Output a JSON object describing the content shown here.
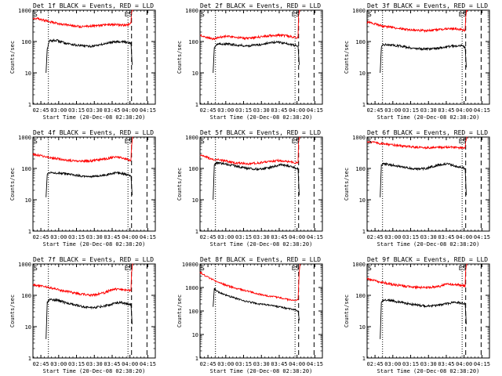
{
  "figure": {
    "date_label": "Start Time (20-Dec-08 02:38:20)",
    "ylabel": "Counts/sec",
    "x_ticks": [
      "02:45",
      "03:00",
      "03:15",
      "03:30",
      "03:45",
      "04:00",
      "04:15"
    ],
    "x_ticks_short": [
      "02:45",
      "03:00",
      "03:15",
      "03:30",
      "03:45",
      "04:00",
      "04:15"
    ],
    "y_ticks_small": [
      "1",
      "10",
      "100",
      "1000"
    ],
    "y_ticks_large": [
      "1",
      "10",
      "100",
      "1000",
      "10000"
    ],
    "colors": {
      "events": "#000000",
      "lld": "#ff0000"
    },
    "marker_glyphs": {
      "left": "S",
      "right": "ES"
    }
  },
  "chart_data": [
    {
      "type": "line",
      "title": "Det 1f BLACK = Events, RED = LLD",
      "xlabel": "Start Time (20-Dec-08 02:38:20)",
      "ylabel": "Counts/sec",
      "x_unit": "minutes after 02:38:20",
      "xlim": [
        0,
        103
      ],
      "ylim": [
        1,
        1000
      ],
      "yscale": "log",
      "series": [
        {
          "name": "Events",
          "color": "#000000",
          "x": [
            11,
            12,
            14,
            20,
            28,
            38,
            48,
            58,
            68,
            76,
            80,
            82.5,
            83.5
          ],
          "y": [
            10,
            60,
            105,
            108,
            88,
            75,
            70,
            80,
            100,
            98,
            95,
            90,
            18
          ]
        },
        {
          "name": "LLD",
          "color": "#ff0000",
          "x": [
            0,
            5,
            10,
            15,
            22,
            30,
            40,
            50,
            60,
            70,
            78,
            82.5,
            83,
            83.8,
            84.3
          ],
          "y": [
            560,
            520,
            470,
            420,
            370,
            330,
            300,
            310,
            340,
            345,
            330,
            390,
            900,
            1000,
            1000
          ]
        }
      ],
      "dotted_lines_x": [
        13,
        80
      ],
      "dashed_lines_x": [
        83,
        96
      ]
    },
    {
      "type": "line",
      "title": "Det 2f BLACK = Events, RED = LLD",
      "xlabel": "Start Time (20-Dec-08 02:38:20)",
      "ylabel": "Counts/sec",
      "x_unit": "minutes after 02:38:20",
      "xlim": [
        0,
        103
      ],
      "ylim": [
        1,
        1000
      ],
      "yscale": "log",
      "series": [
        {
          "name": "Events",
          "color": "#000000",
          "x": [
            11,
            12,
            14,
            20,
            30,
            40,
            50,
            60,
            66,
            74,
            80,
            82.5,
            83.5
          ],
          "y": [
            10,
            65,
            80,
            85,
            78,
            72,
            80,
            92,
            95,
            85,
            75,
            70,
            18
          ]
        },
        {
          "name": "LLD",
          "color": "#ff0000",
          "x": [
            0,
            5,
            10,
            15,
            22,
            30,
            40,
            50,
            60,
            68,
            76,
            82.5,
            83,
            83.8,
            84.3
          ],
          "y": [
            160,
            140,
            120,
            130,
            150,
            135,
            125,
            140,
            155,
            160,
            145,
            130,
            700,
            1000,
            1000
          ]
        }
      ],
      "dotted_lines_x": [
        13,
        80
      ],
      "dashed_lines_x": [
        83,
        96
      ]
    },
    {
      "type": "line",
      "title": "Det 3f BLACK = Events, RED = LLD",
      "xlabel": "Start Time (20-Dec-08 02:38:20)",
      "ylabel": "Counts/sec",
      "x_unit": "minutes after 02:38:20",
      "xlim": [
        0,
        103
      ],
      "ylim": [
        1,
        1000
      ],
      "yscale": "log",
      "series": [
        {
          "name": "Events",
          "color": "#000000",
          "x": [
            11,
            12,
            14,
            20,
            30,
            40,
            50,
            60,
            70,
            78,
            82.5,
            83.5
          ],
          "y": [
            10,
            65,
            80,
            78,
            70,
            60,
            58,
            62,
            70,
            75,
            68,
            15
          ]
        },
        {
          "name": "LLD",
          "color": "#ff0000",
          "x": [
            0,
            5,
            10,
            15,
            22,
            30,
            40,
            50,
            60,
            70,
            78,
            82.5,
            83,
            83.8,
            84.3
          ],
          "y": [
            420,
            380,
            330,
            300,
            280,
            250,
            230,
            220,
            240,
            260,
            240,
            230,
            600,
            1000,
            1000
          ]
        }
      ],
      "dotted_lines_x": [
        13,
        80
      ],
      "dashed_lines_x": [
        83,
        96
      ]
    },
    {
      "type": "line",
      "title": "Det 4f BLACK = Events, RED = LLD",
      "xlabel": "Start Time (20-Dec-08 02:38:20)",
      "ylabel": "Counts/sec",
      "x_unit": "minutes after 02:38:20",
      "xlim": [
        0,
        103
      ],
      "ylim": [
        1,
        1000
      ],
      "yscale": "log",
      "series": [
        {
          "name": "Events",
          "color": "#000000",
          "x": [
            11,
            12,
            14,
            20,
            30,
            40,
            50,
            60,
            70,
            76,
            80,
            82.5,
            83.5
          ],
          "y": [
            12,
            65,
            75,
            72,
            65,
            58,
            55,
            60,
            72,
            68,
            62,
            58,
            14
          ]
        },
        {
          "name": "LLD",
          "color": "#ff0000",
          "x": [
            0,
            5,
            10,
            15,
            22,
            30,
            40,
            50,
            60,
            70,
            76,
            82.5,
            83,
            83.8,
            84.3
          ],
          "y": [
            280,
            260,
            240,
            220,
            200,
            180,
            170,
            175,
            200,
            230,
            210,
            180,
            500,
            1000,
            1000
          ]
        }
      ],
      "dotted_lines_x": [
        13,
        80
      ],
      "dashed_lines_x": [
        83,
        96
      ]
    },
    {
      "type": "line",
      "title": "Det 5f BLACK = Events, RED = LLD",
      "xlabel": "Start Time (20-Dec-08 02:38:20)",
      "ylabel": "Counts/sec",
      "x_unit": "minutes after 02:38:20",
      "xlim": [
        0,
        103
      ],
      "ylim": [
        1,
        1000
      ],
      "yscale": "log",
      "series": [
        {
          "name": "Events",
          "color": "#000000",
          "x": [
            11,
            12,
            14,
            20,
            30,
            40,
            50,
            60,
            68,
            74,
            80,
            82.5,
            83.5
          ],
          "y": [
            10,
            130,
            150,
            140,
            120,
            100,
            95,
            110,
            130,
            120,
            105,
            95,
            14
          ]
        },
        {
          "name": "LLD",
          "color": "#ff0000",
          "x": [
            0,
            5,
            10,
            15,
            22,
            30,
            40,
            50,
            60,
            68,
            76,
            82.5,
            83,
            83.8,
            84.3
          ],
          "y": [
            260,
            230,
            200,
            190,
            170,
            150,
            140,
            150,
            170,
            180,
            160,
            150,
            700,
            1000,
            1000
          ]
        }
      ],
      "dotted_lines_x": [
        13,
        80
      ],
      "dashed_lines_x": [
        83,
        96
      ]
    },
    {
      "type": "line",
      "title": "Det 6f BLACK = Events, RED = LLD",
      "xlabel": "Start Time (20-Dec-08 02:38:20)",
      "ylabel": "Counts/sec",
      "x_unit": "minutes after 02:38:20",
      "xlim": [
        0,
        103
      ],
      "ylim": [
        1,
        1000
      ],
      "yscale": "log",
      "series": [
        {
          "name": "Events",
          "color": "#000000",
          "x": [
            11,
            12,
            14,
            20,
            30,
            40,
            50,
            60,
            68,
            76,
            82.5,
            83.5
          ],
          "y": [
            12,
            130,
            140,
            130,
            110,
            95,
            100,
            130,
            140,
            115,
            100,
            14
          ]
        },
        {
          "name": "LLD",
          "color": "#ff0000",
          "x": [
            0,
            5,
            10,
            15,
            22,
            30,
            40,
            50,
            60,
            70,
            78,
            82.5,
            83,
            83.8,
            84.3
          ],
          "y": [
            720,
            680,
            620,
            600,
            560,
            520,
            480,
            460,
            470,
            480,
            450,
            440,
            700,
            1000,
            1000
          ]
        }
      ],
      "dotted_lines_x": [
        13,
        80
      ],
      "dashed_lines_x": [
        83,
        96
      ]
    },
    {
      "type": "line",
      "title": "Det 7f BLACK = Events, RED = LLD",
      "xlabel": "Start Time (20-Dec-08 02:38:20)",
      "ylabel": "Counts/sec",
      "x_unit": "minutes after 02:38:20",
      "xlim": [
        0,
        103
      ],
      "ylim": [
        1,
        1000
      ],
      "yscale": "log",
      "series": [
        {
          "name": "Events",
          "color": "#000000",
          "x": [
            11,
            12,
            14,
            20,
            30,
            40,
            50,
            60,
            68,
            74,
            82.5,
            83.5
          ],
          "y": [
            4,
            60,
            75,
            70,
            55,
            45,
            40,
            45,
            55,
            60,
            50,
            12
          ]
        },
        {
          "name": "LLD",
          "color": "#ff0000",
          "x": [
            0,
            5,
            10,
            15,
            22,
            30,
            40,
            50,
            60,
            68,
            76,
            82.5,
            83,
            83.8,
            84.3
          ],
          "y": [
            220,
            200,
            190,
            170,
            150,
            130,
            110,
            100,
            120,
            160,
            150,
            140,
            500,
            1000,
            1000
          ]
        }
      ],
      "dotted_lines_x": [
        13,
        80
      ],
      "dashed_lines_x": [
        83,
        96
      ]
    },
    {
      "type": "line",
      "title": "Det 8f BLACK = Events, RED = LLD",
      "xlabel": "Start Time (20-Dec-08 02:38:20)",
      "ylabel": "Counts/sec",
      "x_unit": "minutes after 02:38:20",
      "xlim": [
        0,
        103
      ],
      "ylim": [
        1,
        10000
      ],
      "yscale": "log",
      "series": [
        {
          "name": "Events",
          "color": "#000000",
          "x": [
            11,
            12,
            14,
            20,
            30,
            40,
            50,
            60,
            70,
            80,
            82.5,
            83.5
          ],
          "y": [
            150,
            900,
            700,
            500,
            350,
            250,
            200,
            170,
            140,
            110,
            100,
            40
          ]
        },
        {
          "name": "LLD",
          "color": "#ff0000",
          "x": [
            0,
            3,
            8,
            12,
            18,
            25,
            35,
            45,
            55,
            65,
            75,
            82,
            82.5,
            83.5,
            84.3
          ],
          "y": [
            4500,
            3500,
            2500,
            2000,
            1500,
            1100,
            800,
            600,
            450,
            380,
            300,
            280,
            300,
            5000,
            10000
          ]
        }
      ],
      "dotted_lines_x": [
        13,
        80
      ],
      "dashed_lines_x": [
        83,
        96
      ]
    },
    {
      "type": "line",
      "title": "Det 9f BLACK = Events, RED = LLD",
      "xlabel": "Start Time (20-Dec-08 02:38:20)",
      "ylabel": "Counts/sec",
      "x_unit": "minutes after 02:38:20",
      "xlim": [
        0,
        103
      ],
      "ylim": [
        1,
        1000
      ],
      "yscale": "log",
      "series": [
        {
          "name": "Events",
          "color": "#000000",
          "x": [
            11,
            12,
            14,
            20,
            30,
            40,
            50,
            60,
            68,
            74,
            82.5,
            83.5
          ],
          "y": [
            4,
            60,
            72,
            68,
            58,
            50,
            45,
            48,
            55,
            60,
            55,
            12
          ]
        },
        {
          "name": "LLD",
          "color": "#ff0000",
          "x": [
            0,
            5,
            10,
            15,
            22,
            30,
            40,
            50,
            60,
            68,
            76,
            82.5,
            83,
            83.8,
            84.3
          ],
          "y": [
            330,
            300,
            270,
            250,
            220,
            200,
            180,
            175,
            190,
            230,
            220,
            200,
            600,
            1000,
            1000
          ]
        }
      ],
      "dotted_lines_x": [
        13,
        80
      ],
      "dashed_lines_x": [
        83,
        96
      ]
    }
  ]
}
